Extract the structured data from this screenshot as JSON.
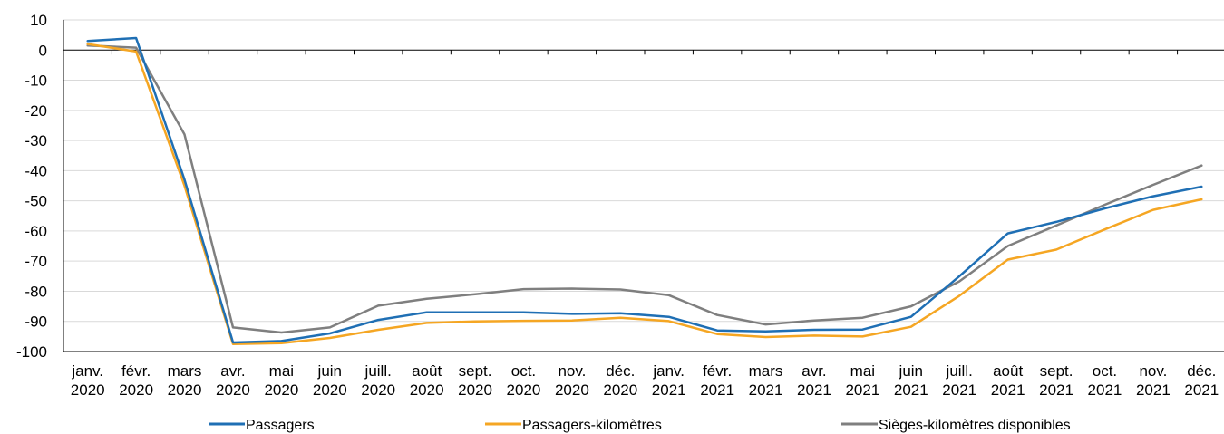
{
  "chart_data": {
    "type": "line",
    "title": "",
    "xlabel": "",
    "ylabel": "",
    "ylim": [
      -100,
      10
    ],
    "yticks": [
      10,
      0,
      -10,
      -20,
      -30,
      -40,
      -50,
      -60,
      -70,
      -80,
      -90,
      -100
    ],
    "grid": "horizontal",
    "legend_position": "bottom",
    "categories": [
      [
        "janv.",
        "2020"
      ],
      [
        "févr.",
        "2020"
      ],
      [
        "mars",
        "2020"
      ],
      [
        "avr.",
        "2020"
      ],
      [
        "mai",
        "2020"
      ],
      [
        "juin",
        "2020"
      ],
      [
        "juill.",
        "2020"
      ],
      [
        "août",
        "2020"
      ],
      [
        "sept.",
        "2020"
      ],
      [
        "oct.",
        "2020"
      ],
      [
        "nov.",
        "2020"
      ],
      [
        "déc.",
        "2020"
      ],
      [
        "janv.",
        "2021"
      ],
      [
        "févr.",
        "2021"
      ],
      [
        "mars",
        "2021"
      ],
      [
        "avr.",
        "2021"
      ],
      [
        "mai",
        "2021"
      ],
      [
        "juin",
        "2021"
      ],
      [
        "juill.",
        "2021"
      ],
      [
        "août",
        "2021"
      ],
      [
        "sept.",
        "2021"
      ],
      [
        "oct.",
        "2021"
      ],
      [
        "nov.",
        "2021"
      ],
      [
        "déc.",
        "2021"
      ]
    ],
    "series": [
      {
        "name": "Passagers",
        "color": "#1f6fb4",
        "values": [
          3,
          4,
          -43,
          -97,
          -96.5,
          -94,
          -89.5,
          -87,
          -87,
          -87,
          -87.5,
          -87.3,
          -88.5,
          -93,
          -93.3,
          -92.8,
          -92.7,
          -88.5,
          -75,
          -60.8,
          -57,
          -52.5,
          -48.5,
          -45.3
        ]
      },
      {
        "name": "Passagers-kilomètres",
        "color": "#f5a623",
        "values": [
          2,
          -0.5,
          -45,
          -97.5,
          -97.2,
          -95.5,
          -92.8,
          -90.5,
          -90,
          -89.8,
          -89.7,
          -88.8,
          -89.9,
          -94.2,
          -95.2,
          -94.7,
          -95,
          -91.8,
          -81.5,
          -69.5,
          -66.2,
          -59.5,
          -53,
          -49.5
        ]
      },
      {
        "name": "Sièges-kilomètres disponibles",
        "color": "#7f7f7f",
        "values": [
          1.5,
          0.8,
          -28,
          -92,
          -93.7,
          -92,
          -84.8,
          -82.5,
          -81,
          -79.3,
          -79.1,
          -79.4,
          -81.3,
          -87.9,
          -91,
          -89.7,
          -88.8,
          -85,
          -76.7,
          -65,
          -58.2,
          -51.3,
          -44.7,
          -38.3
        ]
      }
    ]
  }
}
